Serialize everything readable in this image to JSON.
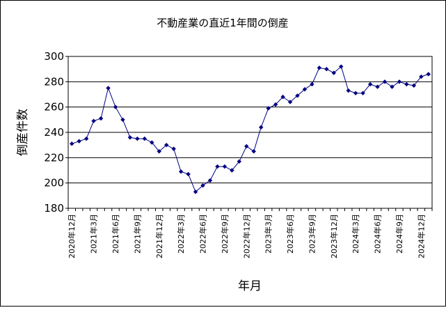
{
  "chart_data": {
    "type": "line",
    "title": "不動産業の直近1年間の倒産",
    "xlabel": "年月",
    "ylabel": "倒産件数",
    "ylim": [
      180,
      300
    ],
    "yticks": [
      180,
      200,
      220,
      240,
      260,
      280,
      300
    ],
    "grid": "horizontal",
    "legend": "none",
    "x": [
      "2020年12月",
      "2021年1月",
      "2021年2月",
      "2021年3月",
      "2021年4月",
      "2021年5月",
      "2021年6月",
      "2021年7月",
      "2021年8月",
      "2021年9月",
      "2021年10月",
      "2021年11月",
      "2021年12月",
      "2022年1月",
      "2022年2月",
      "2022年3月",
      "2022年4月",
      "2022年5月",
      "2022年6月",
      "2022年7月",
      "2022年8月",
      "2022年9月",
      "2022年10月",
      "2022年11月",
      "2022年12月",
      "2023年1月",
      "2023年2月",
      "2023年3月",
      "2023年4月",
      "2023年5月",
      "2023年6月",
      "2023年7月",
      "2023年8月",
      "2023年9月",
      "2023年10月",
      "2023年11月",
      "2023年12月",
      "2024年1月",
      "2024年2月",
      "2024年3月",
      "2024年4月",
      "2024年5月",
      "2024年6月",
      "2024年7月",
      "2024年8月",
      "2024年9月",
      "2024年10月",
      "2024年11月",
      "2024年12月",
      "2025年1月"
    ],
    "xtick_labels": [
      "2020年12月",
      "2021年3月",
      "2021年6月",
      "2021年9月",
      "2021年12月",
      "2022年3月",
      "2022年6月",
      "2022年9月",
      "2022年12月",
      "2023年3月",
      "2023年6月",
      "2023年9月",
      "2023年12月",
      "2024年3月",
      "2024年6月",
      "2024年9月",
      "2024年12月"
    ],
    "series": [
      {
        "values": [
          231,
          233,
          235,
          249,
          251,
          275,
          260,
          250,
          236,
          235,
          235,
          232,
          225,
          230,
          227,
          209,
          207,
          193,
          198,
          202,
          213,
          213,
          210,
          217,
          229,
          225,
          244,
          259,
          262,
          268,
          264,
          269,
          274,
          278,
          291,
          290,
          287,
          292,
          273,
          271,
          271,
          278,
          276,
          280,
          276,
          280,
          278,
          277,
          284,
          286
        ],
        "color": "#000080"
      }
    ],
    "colors": {
      "line": "#000080",
      "grid": "#000000",
      "background": "#ffffff"
    }
  }
}
